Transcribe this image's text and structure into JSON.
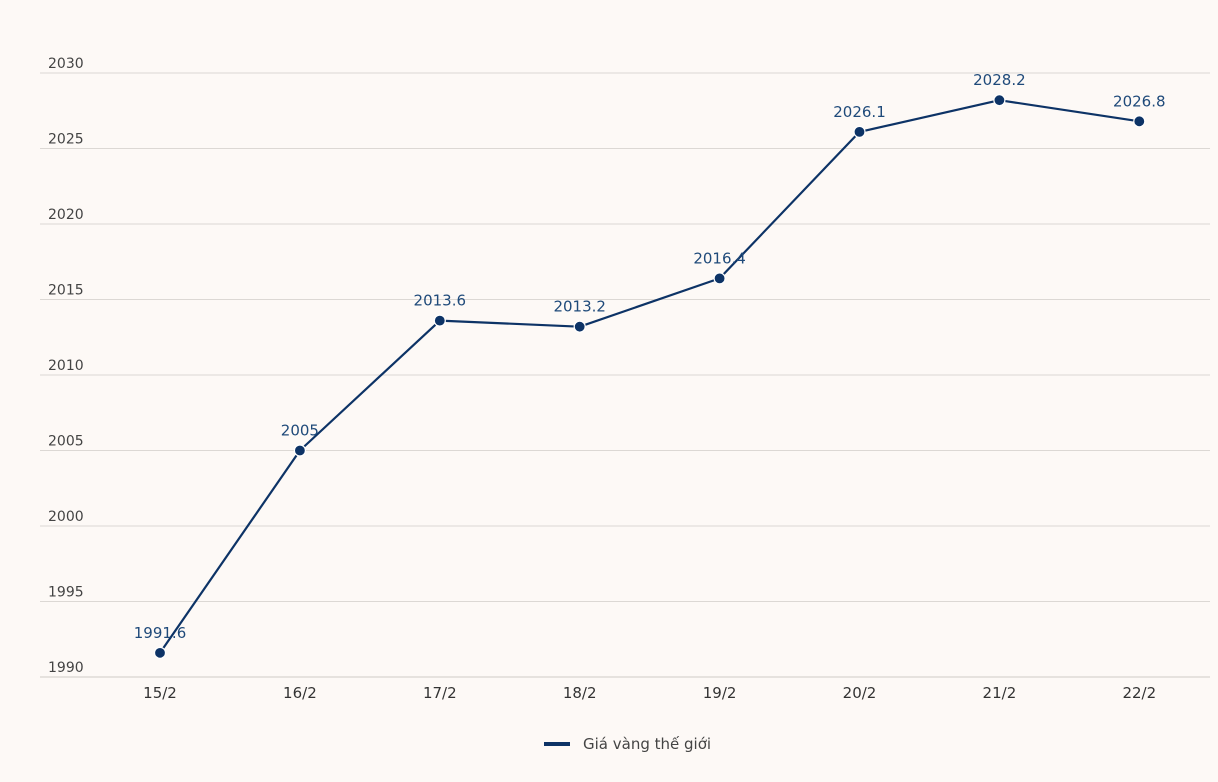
{
  "chart_data": {
    "type": "line",
    "title": "",
    "xlabel": "",
    "ylabel": "",
    "categories": [
      "15/2",
      "16/2",
      "17/2",
      "18/2",
      "19/2",
      "20/2",
      "21/2",
      "22/2"
    ],
    "series": [
      {
        "name": "Giá vàng thế giới",
        "values": [
          1991.6,
          2005,
          2013.6,
          2013.2,
          2016.4,
          2026.1,
          2028.2,
          2026.8
        ],
        "labels": [
          "1991.6",
          "2005",
          "2013.6",
          "2013.2",
          "2016.4",
          "2026.1",
          "2028.2",
          "2026.8"
        ]
      }
    ],
    "ylim": [
      1990,
      2030
    ],
    "yticks": [
      "1990",
      "1995",
      "2000",
      "2005",
      "2010",
      "2015",
      "2020",
      "2025",
      "2030"
    ],
    "grid": true,
    "legend": "bottom-center"
  },
  "colors": {
    "series": "#0d3366",
    "label": "#1f4a7a",
    "grid": "#dcd8d4",
    "background": "#fdf9f6"
  }
}
